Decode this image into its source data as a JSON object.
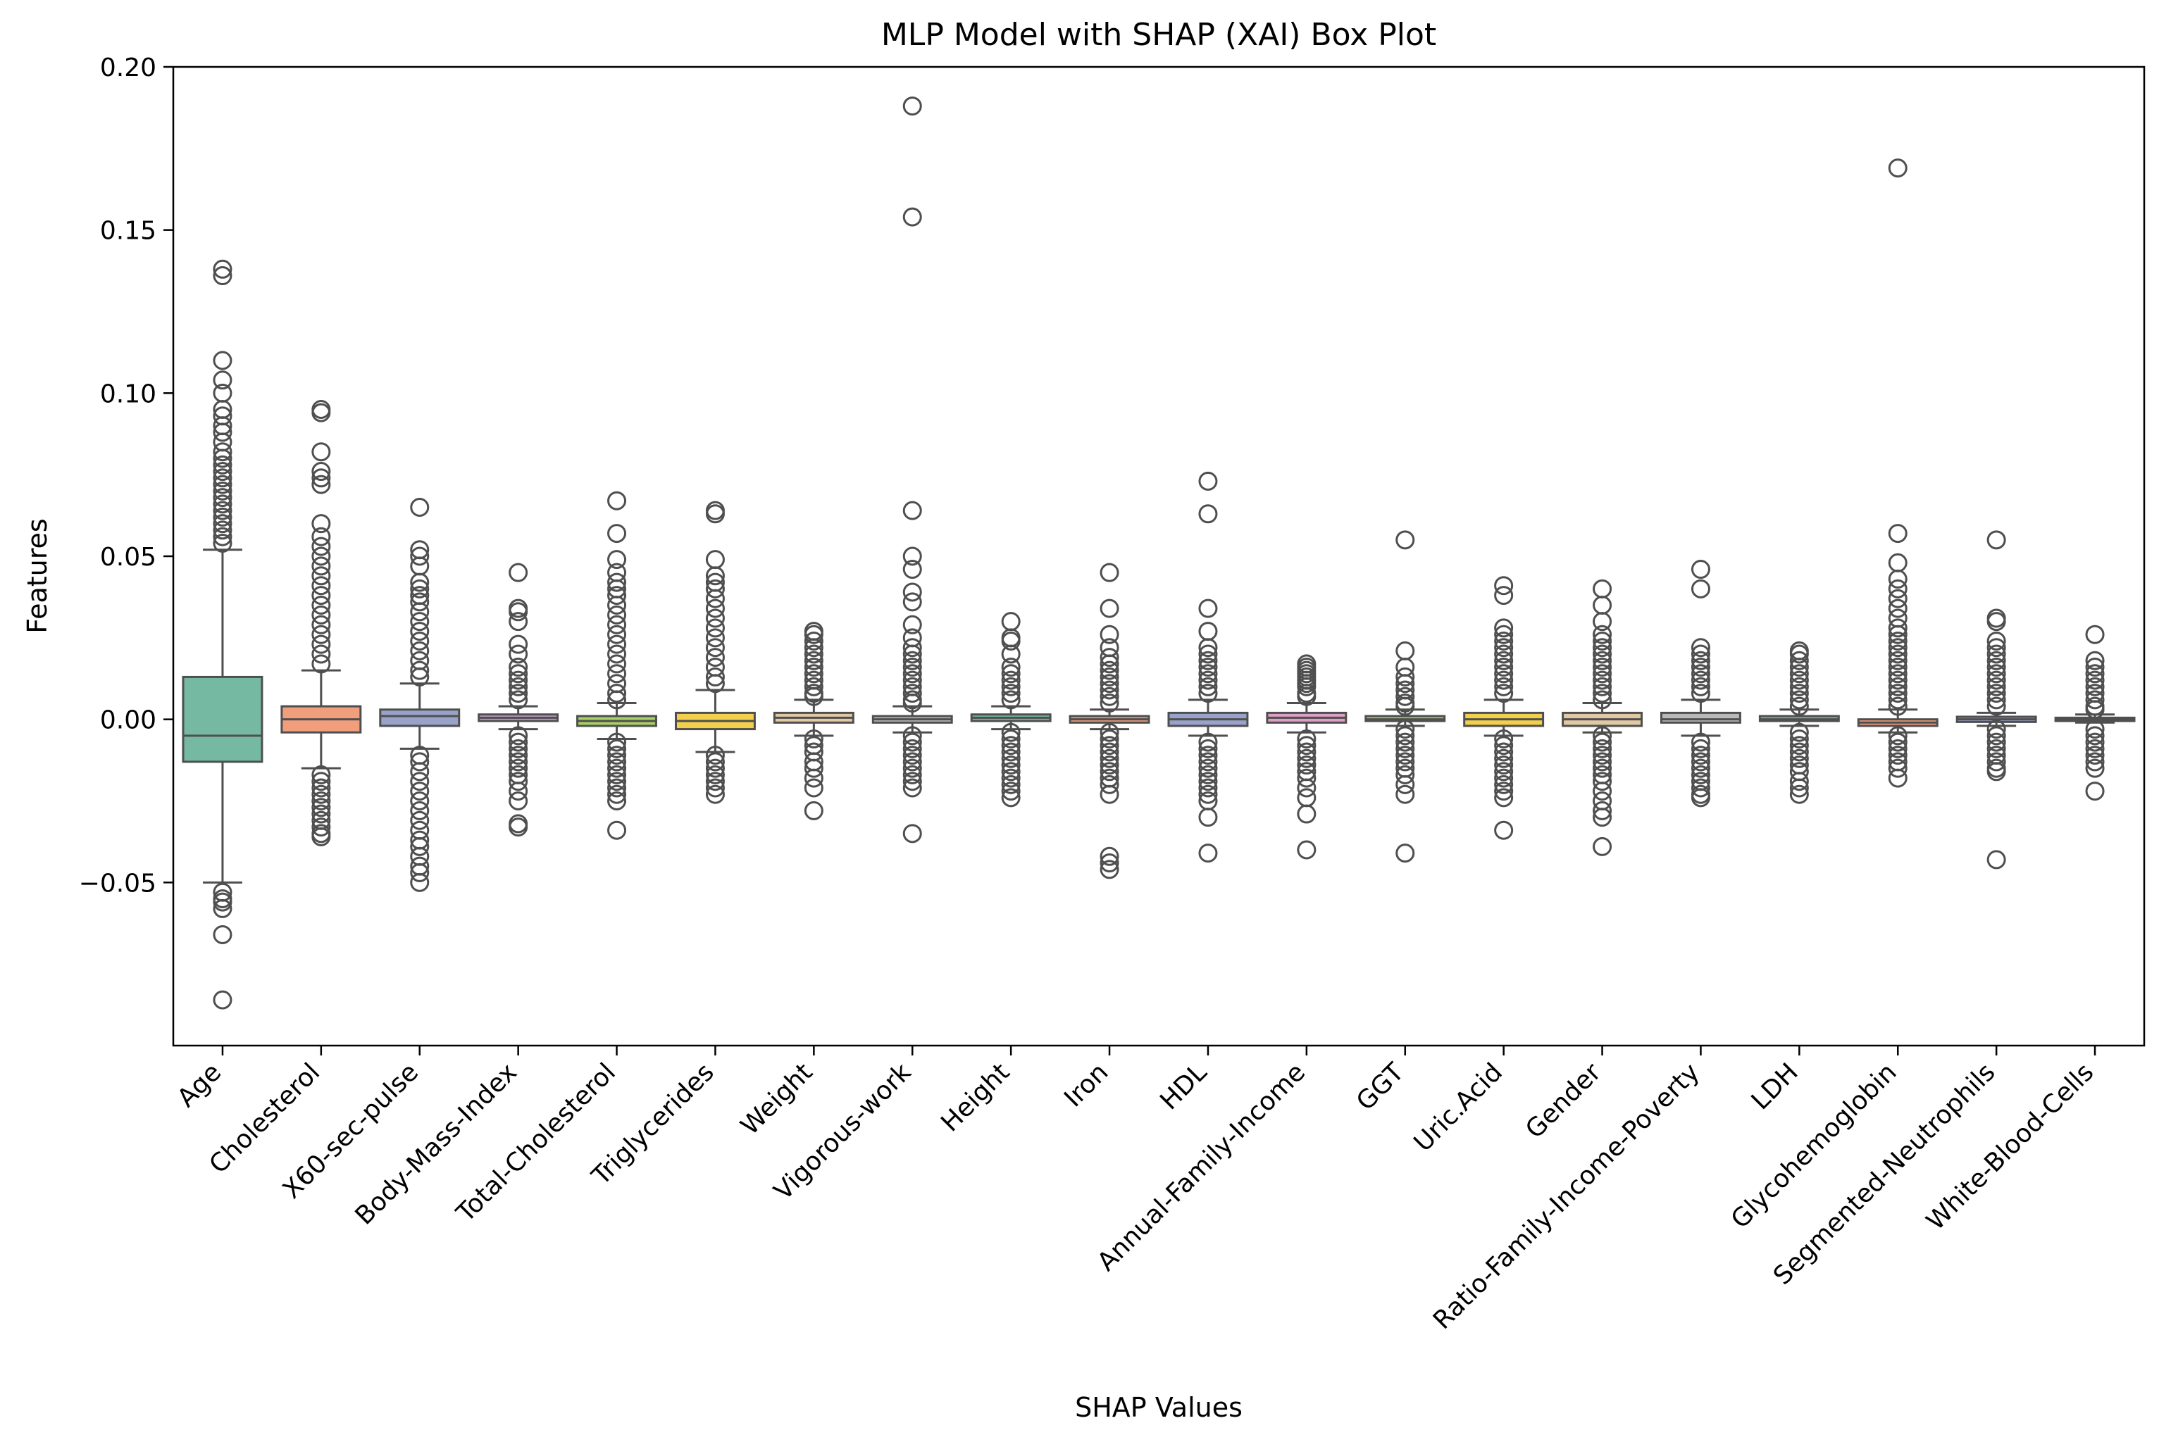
{
  "chart_data": {
    "type": "box",
    "title": "MLP Model with SHAP (XAI) Box Plot",
    "xlabel": "SHAP Values",
    "ylabel": "Features",
    "ylim": [
      -0.1,
      0.2
    ],
    "yticks": [
      -0.05,
      0.0,
      0.05,
      0.1,
      0.15,
      0.2
    ],
    "ytick_labels": [
      "−0.05",
      "0.00",
      "0.05",
      "0.10",
      "0.15",
      "0.20"
    ],
    "grid": false,
    "legend": "none",
    "colors": {
      "line": "#4f4f4f",
      "axis": "#000000",
      "boxes": [
        "#75b9a3",
        "#f19e7d",
        "#99a3c9",
        "#c09cc9",
        "#a9d063",
        "#f2d04c",
        "#e2c9a3",
        "#b9b9b9",
        "#75b9a3",
        "#f19e7d",
        "#99a3c9",
        "#de9ec5",
        "#a9d063",
        "#f2d04c",
        "#e2c9a3",
        "#b9b9b9",
        "#75b9a3",
        "#f19e7d",
        "#99a3c9",
        "#de9ec5"
      ]
    },
    "categories": [
      "Age",
      "Cholesterol",
      "X60-sec-pulse",
      "Body-Mass-Index",
      "Total-Cholesterol",
      "Triglycerides",
      "Weight",
      "Vigorous-work",
      "Height",
      "Iron",
      "HDL",
      "Annual-Family-Income",
      "GGT",
      "Uric.Acid",
      "Gender",
      "Ratio-Family-Income-Poverty",
      "LDH",
      "Glycohemoglobin",
      "Segmented-Neutrophils",
      "White-Blood-Cells"
    ],
    "boxes": [
      {
        "q1": -0.013,
        "median": -0.005,
        "q3": 0.013,
        "whisker_low": -0.05,
        "whisker_high": 0.052,
        "outliers": [
          0.138,
          0.136,
          0.11,
          0.104,
          0.1,
          0.095,
          0.093,
          0.09,
          0.088,
          0.085,
          0.082,
          0.08,
          0.078,
          0.076,
          0.074,
          0.072,
          0.07,
          0.068,
          0.066,
          0.064,
          0.062,
          0.06,
          0.058,
          0.056,
          0.054,
          -0.053,
          -0.055,
          -0.056,
          -0.058,
          -0.066,
          -0.086
        ]
      },
      {
        "q1": -0.004,
        "median": 0.0,
        "q3": 0.004,
        "whisker_low": -0.015,
        "whisker_high": 0.015,
        "outliers": [
          0.095,
          0.094,
          0.082,
          0.076,
          0.074,
          0.072,
          0.06,
          0.056,
          0.053,
          0.05,
          0.047,
          0.044,
          0.041,
          0.038,
          0.035,
          0.032,
          0.029,
          0.026,
          0.023,
          0.02,
          0.017,
          -0.017,
          -0.019,
          -0.021,
          -0.023,
          -0.025,
          -0.027,
          -0.029,
          -0.031,
          -0.033,
          -0.035,
          -0.036
        ]
      },
      {
        "q1": -0.002,
        "median": 0.001,
        "q3": 0.003,
        "whisker_low": -0.009,
        "whisker_high": 0.011,
        "outliers": [
          0.065,
          0.052,
          0.05,
          0.047,
          0.042,
          0.04,
          0.038,
          0.036,
          0.033,
          0.03,
          0.027,
          0.024,
          0.021,
          0.018,
          0.015,
          0.013,
          -0.011,
          -0.013,
          -0.016,
          -0.019,
          -0.022,
          -0.025,
          -0.028,
          -0.031,
          -0.034,
          -0.037,
          -0.039,
          -0.042,
          -0.045,
          -0.047,
          -0.05
        ]
      },
      {
        "q1": -0.0005,
        "median": 0.0005,
        "q3": 0.0015,
        "whisker_low": -0.003,
        "whisker_high": 0.004,
        "outliers": [
          0.045,
          0.034,
          0.033,
          0.03,
          0.023,
          0.02,
          0.016,
          0.014,
          0.012,
          0.01,
          0.008,
          0.006,
          -0.005,
          -0.007,
          -0.009,
          -0.011,
          -0.013,
          -0.015,
          -0.017,
          -0.019,
          -0.022,
          -0.025,
          -0.032,
          -0.033
        ]
      },
      {
        "q1": -0.002,
        "median": -0.0005,
        "q3": 0.001,
        "whisker_low": -0.006,
        "whisker_high": 0.005,
        "outliers": [
          0.067,
          0.057,
          0.049,
          0.045,
          0.042,
          0.04,
          0.038,
          0.035,
          0.032,
          0.029,
          0.026,
          0.023,
          0.02,
          0.017,
          0.014,
          0.011,
          0.008,
          0.006,
          -0.007,
          -0.009,
          -0.011,
          -0.013,
          -0.015,
          -0.017,
          -0.019,
          -0.021,
          -0.023,
          -0.025,
          -0.034
        ]
      },
      {
        "q1": -0.003,
        "median": -0.0005,
        "q3": 0.002,
        "whisker_low": -0.01,
        "whisker_high": 0.009,
        "outliers": [
          0.064,
          0.063,
          0.049,
          0.044,
          0.042,
          0.04,
          0.037,
          0.034,
          0.031,
          0.028,
          0.025,
          0.022,
          0.019,
          0.016,
          0.013,
          0.011,
          -0.011,
          -0.013,
          -0.015,
          -0.017,
          -0.019,
          -0.021,
          -0.023
        ]
      },
      {
        "q1": -0.001,
        "median": 0.0005,
        "q3": 0.002,
        "whisker_low": -0.005,
        "whisker_high": 0.006,
        "outliers": [
          0.027,
          0.026,
          0.024,
          0.022,
          0.02,
          0.018,
          0.016,
          0.014,
          0.012,
          0.01,
          0.008,
          0.007,
          -0.006,
          -0.008,
          -0.01,
          -0.013,
          -0.015,
          -0.018,
          -0.021,
          -0.028
        ]
      },
      {
        "q1": -0.001,
        "median": 0.0,
        "q3": 0.001,
        "whisker_low": -0.004,
        "whisker_high": 0.004,
        "outliers": [
          0.188,
          0.154,
          0.064,
          0.05,
          0.046,
          0.039,
          0.036,
          0.029,
          0.025,
          0.022,
          0.02,
          0.018,
          0.016,
          0.014,
          0.012,
          0.01,
          0.008,
          0.006,
          0.005,
          -0.005,
          -0.007,
          -0.009,
          -0.011,
          -0.013,
          -0.015,
          -0.017,
          -0.019,
          -0.021,
          -0.035
        ]
      },
      {
        "q1": -0.0005,
        "median": 0.0005,
        "q3": 0.0015,
        "whisker_low": -0.003,
        "whisker_high": 0.004,
        "outliers": [
          0.03,
          0.025,
          0.024,
          0.02,
          0.016,
          0.014,
          0.012,
          0.01,
          0.008,
          0.006,
          -0.004,
          -0.006,
          -0.008,
          -0.01,
          -0.012,
          -0.014,
          -0.016,
          -0.018,
          -0.02,
          -0.022,
          -0.024
        ]
      },
      {
        "q1": -0.001,
        "median": 0.0,
        "q3": 0.001,
        "whisker_low": -0.003,
        "whisker_high": 0.003,
        "outliers": [
          0.045,
          0.034,
          0.026,
          0.022,
          0.019,
          0.017,
          0.015,
          0.013,
          0.011,
          0.009,
          0.007,
          0.005,
          -0.004,
          -0.006,
          -0.008,
          -0.01,
          -0.012,
          -0.014,
          -0.016,
          -0.018,
          -0.02,
          -0.023,
          -0.042,
          -0.044,
          -0.046
        ]
      },
      {
        "q1": -0.002,
        "median": 0.0,
        "q3": 0.002,
        "whisker_low": -0.005,
        "whisker_high": 0.006,
        "outliers": [
          0.073,
          0.063,
          0.034,
          0.027,
          0.022,
          0.02,
          0.018,
          0.016,
          0.014,
          0.012,
          0.01,
          0.008,
          -0.007,
          -0.009,
          -0.011,
          -0.013,
          -0.015,
          -0.017,
          -0.019,
          -0.021,
          -0.023,
          -0.025,
          -0.03,
          -0.041
        ]
      },
      {
        "q1": -0.001,
        "median": 0.0005,
        "q3": 0.002,
        "whisker_low": -0.004,
        "whisker_high": 0.005,
        "outliers": [
          0.017,
          0.016,
          0.015,
          0.014,
          0.013,
          0.012,
          0.011,
          0.01,
          0.008,
          0.007,
          -0.006,
          -0.008,
          -0.01,
          -0.012,
          -0.014,
          -0.016,
          -0.018,
          -0.021,
          -0.024,
          -0.029,
          -0.04
        ]
      },
      {
        "q1": -0.0005,
        "median": 0.0,
        "q3": 0.001,
        "whisker_low": -0.002,
        "whisker_high": 0.003,
        "outliers": [
          0.055,
          0.021,
          0.016,
          0.013,
          0.011,
          0.009,
          0.007,
          0.005,
          0.004,
          -0.003,
          -0.005,
          -0.007,
          -0.009,
          -0.011,
          -0.013,
          -0.015,
          -0.017,
          -0.02,
          -0.023,
          -0.041
        ]
      },
      {
        "q1": -0.002,
        "median": 0.0,
        "q3": 0.002,
        "whisker_low": -0.005,
        "whisker_high": 0.006,
        "outliers": [
          0.041,
          0.038,
          0.028,
          0.026,
          0.024,
          0.022,
          0.02,
          0.018,
          0.016,
          0.014,
          0.012,
          0.01,
          0.008,
          -0.006,
          -0.008,
          -0.01,
          -0.012,
          -0.014,
          -0.016,
          -0.018,
          -0.02,
          -0.022,
          -0.024,
          -0.034
        ]
      },
      {
        "q1": -0.002,
        "median": 0.0,
        "q3": 0.002,
        "whisker_low": -0.004,
        "whisker_high": 0.005,
        "outliers": [
          0.04,
          0.035,
          0.03,
          0.026,
          0.024,
          0.022,
          0.02,
          0.018,
          0.016,
          0.014,
          0.012,
          0.01,
          0.008,
          0.006,
          -0.005,
          -0.007,
          -0.009,
          -0.011,
          -0.013,
          -0.015,
          -0.017,
          -0.019,
          -0.022,
          -0.025,
          -0.028,
          -0.03,
          -0.039
        ]
      },
      {
        "q1": -0.001,
        "median": 0.0,
        "q3": 0.002,
        "whisker_low": -0.005,
        "whisker_high": 0.006,
        "outliers": [
          0.046,
          0.04,
          0.022,
          0.02,
          0.018,
          0.016,
          0.014,
          0.012,
          0.01,
          0.008,
          -0.007,
          -0.009,
          -0.011,
          -0.013,
          -0.015,
          -0.017,
          -0.019,
          -0.021,
          -0.023,
          -0.024
        ]
      },
      {
        "q1": -0.0005,
        "median": 0.0,
        "q3": 0.001,
        "whisker_low": -0.002,
        "whisker_high": 0.003,
        "outliers": [
          0.021,
          0.02,
          0.018,
          0.016,
          0.014,
          0.012,
          0.01,
          0.008,
          0.006,
          0.004,
          -0.004,
          -0.006,
          -0.008,
          -0.01,
          -0.012,
          -0.014,
          -0.016,
          -0.019,
          -0.021,
          -0.023
        ]
      },
      {
        "q1": -0.002,
        "median": -0.001,
        "q3": 0.0,
        "whisker_low": -0.004,
        "whisker_high": 0.003,
        "outliers": [
          0.169,
          0.057,
          0.048,
          0.043,
          0.04,
          0.037,
          0.034,
          0.031,
          0.028,
          0.026,
          0.024,
          0.022,
          0.02,
          0.018,
          0.016,
          0.014,
          0.012,
          0.01,
          0.008,
          0.006,
          0.004,
          -0.005,
          -0.007,
          -0.009,
          -0.011,
          -0.013,
          -0.015,
          -0.018
        ]
      },
      {
        "q1": -0.0008,
        "median": 0.0,
        "q3": 0.0008,
        "whisker_low": -0.002,
        "whisker_high": 0.002,
        "outliers": [
          0.055,
          0.031,
          0.03,
          0.024,
          0.022,
          0.02,
          0.018,
          0.016,
          0.014,
          0.012,
          0.01,
          0.008,
          0.006,
          0.004,
          -0.003,
          -0.005,
          -0.007,
          -0.009,
          -0.011,
          -0.013,
          -0.015,
          -0.016,
          -0.043
        ]
      },
      {
        "q1": -0.0005,
        "median": 0.0,
        "q3": 0.0005,
        "whisker_low": -0.001,
        "whisker_high": 0.0015,
        "outliers": [
          0.026,
          0.018,
          0.016,
          0.014,
          0.012,
          0.01,
          0.008,
          0.006,
          0.004,
          0.003,
          -0.003,
          -0.005,
          -0.007,
          -0.009,
          -0.011,
          -0.013,
          -0.015,
          -0.022
        ]
      }
    ]
  }
}
